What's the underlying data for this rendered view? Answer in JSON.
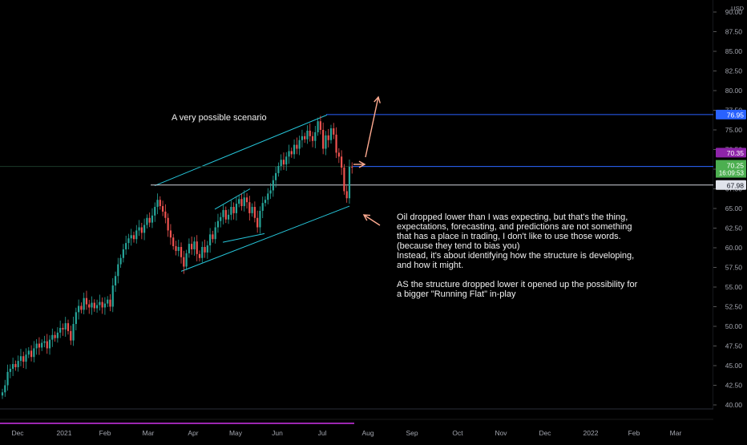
{
  "currency": "USD",
  "annotations": {
    "scenario": "A very possible scenario",
    "analysis": "Oil dropped lower than I was expecting, but that's the thing,\nexpectations, forecasting, and predictions are not something\nthat has a place in trading, I don't like to use those words.\n(because they tend to bias you)\nInstead, it's about identifying how the structure is developing,\nand how it might.\n\nAS the structure dropped lower it opened up the possibility for\na bigger \"Running Flat\" in-play"
  },
  "price_tags": {
    "upper": "76.95",
    "mid": "70.35",
    "last": "70.25",
    "countdown": "16:09:53",
    "lower": "67.98"
  },
  "colors": {
    "background": "#000000",
    "up_candle": "#26a69a",
    "down_candle": "#ef5350",
    "channel": "#26c6da",
    "hline_blue": "#2962ff",
    "hline_white": "#d1d4dc",
    "arrow": "#ffab91",
    "volume_line": "#9c27b0",
    "last_price_tag": "#4caf50",
    "level_tag_blue": "#2962ff",
    "level_tag_purple": "#8e24aa"
  },
  "chart_data": {
    "type": "candlestick",
    "series_name": "",
    "x_tick_labels": [
      "Dec",
      "2021",
      "Feb",
      "Mar",
      "Apr",
      "May",
      "Jun",
      "Jul",
      "Aug",
      "Sep",
      "Oct",
      "Nov",
      "Dec",
      "2022",
      "Feb",
      "Mar"
    ],
    "y_tick_labels": [
      "40.00",
      "42.50",
      "45.00",
      "47.50",
      "50.00",
      "52.50",
      "55.00",
      "57.50",
      "60.00",
      "62.50",
      "65.00",
      "67.50",
      "70.00",
      "72.50",
      "75.00",
      "77.50",
      "80.00",
      "82.50",
      "85.00",
      "87.50",
      "90.00"
    ],
    "ylim": [
      39.6,
      90.8
    ],
    "y_scale": "linear",
    "horizontal_levels": [
      {
        "value": 76.95,
        "color": "#2962ff"
      },
      {
        "value": 70.35,
        "color": "#2962ff"
      },
      {
        "value": 67.98,
        "color": "#d1d4dc"
      }
    ],
    "closes": [
      41.6,
      42.5,
      44.2,
      44.6,
      45.2,
      44.8,
      45.6,
      46.2,
      45.5,
      46.4,
      46.9,
      46.1,
      47.2,
      47.8,
      47.3,
      47.9,
      48.1,
      47.2,
      48.3,
      48.9,
      48.5,
      49.2,
      49.8,
      49.6,
      50.4,
      49.4,
      48.2,
      50.3,
      51.8,
      52.6,
      52.1,
      53.6,
      52.8,
      52.4,
      53.0,
      52.3,
      52.7,
      53.1,
      52.4,
      52.9,
      53.4,
      52.5,
      55.2,
      56.4,
      57.9,
      58.7,
      59.8,
      60.6,
      61.2,
      61.6,
      61.1,
      62.2,
      62.6,
      61.9,
      62.9,
      63.8,
      63.2,
      64.1,
      65.2,
      66.1,
      65.3,
      64.6,
      63.8,
      62.2,
      61.3,
      60.2,
      59.6,
      60.1,
      58.8,
      57.6,
      59.3,
      60.5,
      59.8,
      60.8,
      59.2,
      58.7,
      60.1,
      59.4,
      60.3,
      61.7,
      61.1,
      62.6,
      63.4,
      63.9,
      64.8,
      63.6,
      64.2,
      65.2,
      64.4,
      65.6,
      66.2,
      65.3,
      66.4,
      65.8,
      64.4,
      65.2,
      63.8,
      62.6,
      64.7,
      65.7,
      66.1,
      66.9,
      67.3,
      68.6,
      69.5,
      70.4,
      71.2,
      70.6,
      71.6,
      72.3,
      71.9,
      73.1,
      72.6,
      73.7,
      74.2,
      73.8,
      74.9,
      74.2,
      73.6,
      74.7,
      76.1,
      75.0,
      72.6,
      74.3,
      73.7,
      75.2,
      74.4,
      72.1,
      71.6,
      70.2,
      67.2,
      66.3,
      70.3,
      70.25
    ]
  }
}
